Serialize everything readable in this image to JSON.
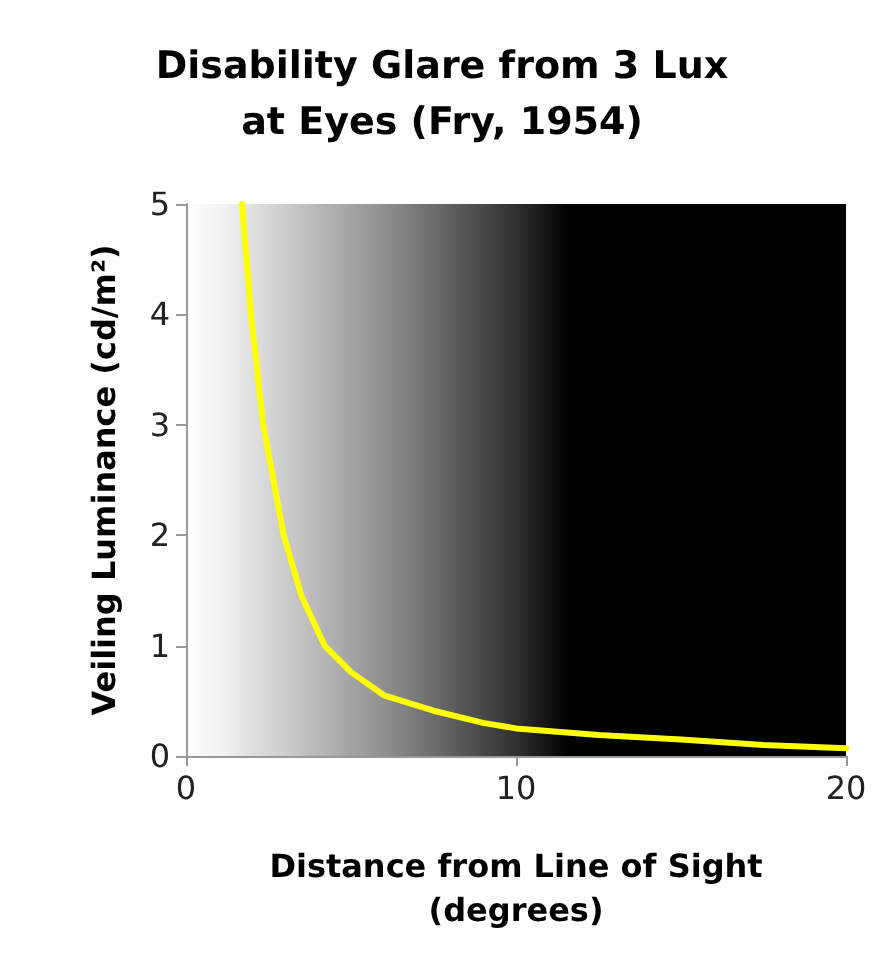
{
  "chart_data": {
    "type": "line",
    "title": "Disability Glare from 3 Lux\nat Eyes (Fry, 1954)",
    "xlabel": "Distance from Line of Sight\n(degrees)",
    "ylabel": "Veiling Luminance (cd/m²)",
    "x": [
      1.7,
      1.97,
      2.34,
      2.96,
      3.5,
      4.2,
      5,
      6,
      7.5,
      9,
      10,
      12.5,
      15,
      17.5,
      20
    ],
    "series": [
      {
        "color": "#ffff00",
        "values": [
          5,
          4,
          3,
          2,
          1.45,
          1,
          0.76,
          0.55,
          0.41,
          0.3,
          0.25,
          0.19,
          0.15,
          0.1,
          0.07
        ]
      }
    ],
    "xlim": [
      0,
      20
    ],
    "xticks": [
      0,
      10,
      20
    ],
    "ylim": [
      0,
      5
    ],
    "yticks": [
      0,
      1,
      2,
      3,
      4,
      5
    ],
    "grid": false,
    "marker": "none",
    "line_style": "solid"
  }
}
